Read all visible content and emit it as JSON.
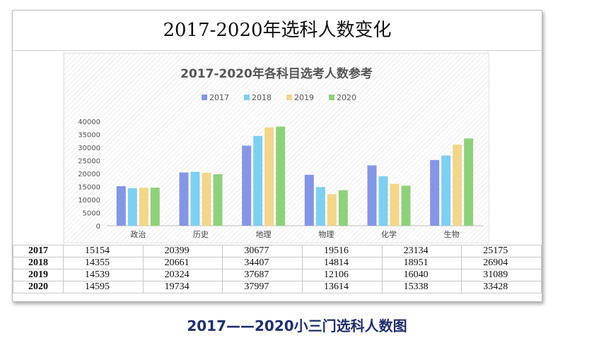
{
  "sheet_title": "2017-2020年选科人数变化",
  "caption": "2017——2020小三门选科人数图",
  "colors": {
    "2017": "#8496e4",
    "2018": "#7ecff0",
    "2019": "#f2d68a",
    "2020": "#8fd17a"
  },
  "chart_data": {
    "type": "bar",
    "title": "2017-2020年各科目选考人数参考",
    "xlabel": "",
    "ylabel": "",
    "ylim": [
      0,
      40000
    ],
    "yticks": [
      0,
      5000,
      10000,
      15000,
      20000,
      25000,
      30000,
      35000,
      40000
    ],
    "legend_position": "top",
    "grid": false,
    "categories": [
      "政治",
      "历史",
      "地理",
      "物理",
      "化学",
      "生物"
    ],
    "series": [
      {
        "name": "2017",
        "values": [
          15154,
          20399,
          30677,
          19516,
          23134,
          25175
        ]
      },
      {
        "name": "2018",
        "values": [
          14355,
          20661,
          34407,
          14814,
          18951,
          26904
        ]
      },
      {
        "name": "2019",
        "values": [
          14539,
          20324,
          37687,
          12106,
          16040,
          31089
        ]
      },
      {
        "name": "2020",
        "values": [
          14595,
          19734,
          37997,
          13614,
          15338,
          33428
        ]
      }
    ]
  },
  "table_rows": [
    {
      "year": "2017",
      "values": [
        "15154",
        "20399",
        "30677",
        "19516",
        "23134",
        "25175"
      ]
    },
    {
      "year": "2018",
      "values": [
        "14355",
        "20661",
        "34407",
        "14814",
        "18951",
        "26904"
      ]
    },
    {
      "year": "2019",
      "values": [
        "14539",
        "20324",
        "37687",
        "12106",
        "16040",
        "31089"
      ]
    },
    {
      "year": "2020",
      "values": [
        "14595",
        "19734",
        "37997",
        "13614",
        "15338",
        "33428"
      ]
    }
  ]
}
